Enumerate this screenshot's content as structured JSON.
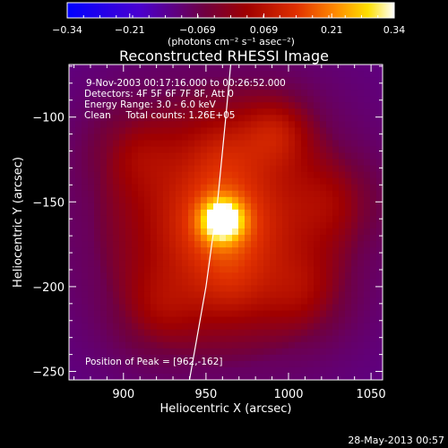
{
  "chart_data": {
    "type": "heatmap",
    "title": "Reconstructed RHESSI Image",
    "xlabel": "Heliocentric X (arcsec)",
    "ylabel": "Heliocentric Y (arcsec)",
    "xlim": [
      867,
      1057
    ],
    "ylim": [
      -255,
      -69
    ],
    "x_ticks": [
      900,
      950,
      1000,
      1050
    ],
    "y_ticks": [
      -100,
      -150,
      -200,
      -250
    ],
    "colorbar": {
      "label": "(photons cm⁻² s⁻¹ asec⁻²)",
      "min": -0.34,
      "max": 0.34,
      "ticks": [
        "−0.34",
        "−0.21",
        "−0.069",
        "0.069",
        "0.21",
        "0.34"
      ],
      "tick_values": [
        -0.34,
        -0.21,
        -0.069,
        0.069,
        0.21,
        0.34
      ],
      "colormap": "blue-purple-red-yellow-white"
    },
    "annotations": [
      "9-Nov-2003 00:17:16.000 to 00:26:52.000",
      "Detectors: 4F 5F 6F 7F 8F, Att 0",
      "Energy Range: 3.0 - 6.0 keV",
      "Clean     Total counts: 1.26E+05",
      "Position of Peak = [962,-162]"
    ],
    "peak": {
      "x": 962,
      "y": -162
    },
    "limb_curve": [
      [
        940,
        -255
      ],
      [
        950,
        -200
      ],
      [
        957,
        -150
      ],
      [
        962,
        -100
      ],
      [
        965,
        -69
      ]
    ],
    "sources": [
      {
        "x": 960,
        "y": -161,
        "amp": 0.3,
        "sigma": 8
      },
      {
        "x": 960,
        "y": -162,
        "amp": 0.13,
        "sigma": 22
      },
      {
        "x": 993,
        "y": -108,
        "amp": 0.1,
        "sigma": 15
      },
      {
        "x": 905,
        "y": -120,
        "amp": 0.07,
        "sigma": 18
      },
      {
        "x": 1030,
        "y": -150,
        "amp": 0.07,
        "sigma": 18
      },
      {
        "x": 920,
        "y": -215,
        "amp": 0.07,
        "sigma": 18
      },
      {
        "x": 1010,
        "y": -205,
        "amp": 0.07,
        "sigma": 18
      },
      {
        "x": 960,
        "y": -120,
        "amp": 0.05,
        "sigma": 15
      },
      {
        "x": 965,
        "y": -200,
        "amp": 0.05,
        "sigma": 15
      },
      {
        "x": 960,
        "y": -160,
        "amp": 0.1,
        "sigma": 70
      }
    ]
  },
  "footer": {
    "date": "28-May-2013 00:57"
  }
}
